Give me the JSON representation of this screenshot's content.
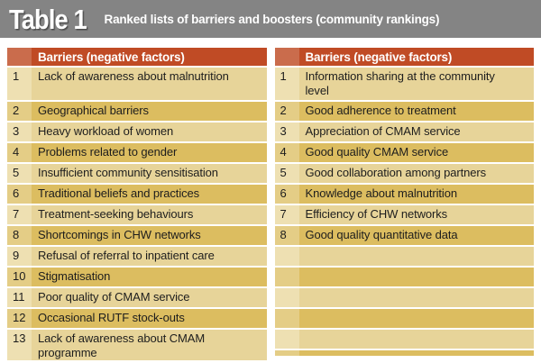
{
  "title_bar": {
    "label": "Table 1",
    "subtitle": "Ranked lists of barriers and boosters (community rankings)"
  },
  "colors": {
    "title_bar_bg": "#848484",
    "header_bg": "#c04b25",
    "header_rank_bg": "#ca6c4c",
    "row_light_bg": "#e7d499",
    "row_light_rank_bg": "#eee0b2",
    "row_dark_bg": "#dcbd60",
    "row_dark_rank_bg": "#e4cd86"
  },
  "left_table": {
    "header": "Barriers (negative factors)",
    "rows": [
      {
        "rank": "1",
        "text": "Lack of awareness about malnutrition"
      },
      {
        "rank": "2",
        "text": "Geographical barriers"
      },
      {
        "rank": "3",
        "text": "Heavy workload of women"
      },
      {
        "rank": "4",
        "text": "Problems related to gender"
      },
      {
        "rank": "5",
        "text": "Insufficient community sensitisation"
      },
      {
        "rank": "6",
        "text": "Traditional beliefs and practices"
      },
      {
        "rank": "7",
        "text": "Treatment-seeking behaviours"
      },
      {
        "rank": "8",
        "text": "Shortcomings in CHW networks"
      },
      {
        "rank": "9",
        "text": "Refusal of referral to inpatient care"
      },
      {
        "rank": "10",
        "text": "Stigmatisation"
      },
      {
        "rank": "11",
        "text": "Poor quality of CMAM service"
      },
      {
        "rank": "12",
        "text": "Occasional RUTF stock-outs"
      },
      {
        "rank": "13",
        "text": "Lack of awareness about CMAM\nprogramme"
      }
    ]
  },
  "right_table": {
    "header": "Barriers (negative factors)",
    "rows": [
      {
        "rank": "1",
        "text": "Information sharing at the community\nlevel"
      },
      {
        "rank": "2",
        "text": "Good adherence to treatment"
      },
      {
        "rank": "3",
        "text": "Appreciation of CMAM service"
      },
      {
        "rank": "4",
        "text": "Good quality CMAM service"
      },
      {
        "rank": "5",
        "text": "Good collaboration among partners"
      },
      {
        "rank": "6",
        "text": "Knowledge about malnutrition"
      },
      {
        "rank": "7",
        "text": "Efficiency of CHW networks"
      },
      {
        "rank": "8",
        "text": "Good quality quantitative data"
      },
      {
        "rank": "",
        "text": ""
      },
      {
        "rank": "",
        "text": ""
      },
      {
        "rank": "",
        "text": ""
      },
      {
        "rank": "",
        "text": ""
      },
      {
        "rank": "",
        "text": ""
      }
    ]
  }
}
